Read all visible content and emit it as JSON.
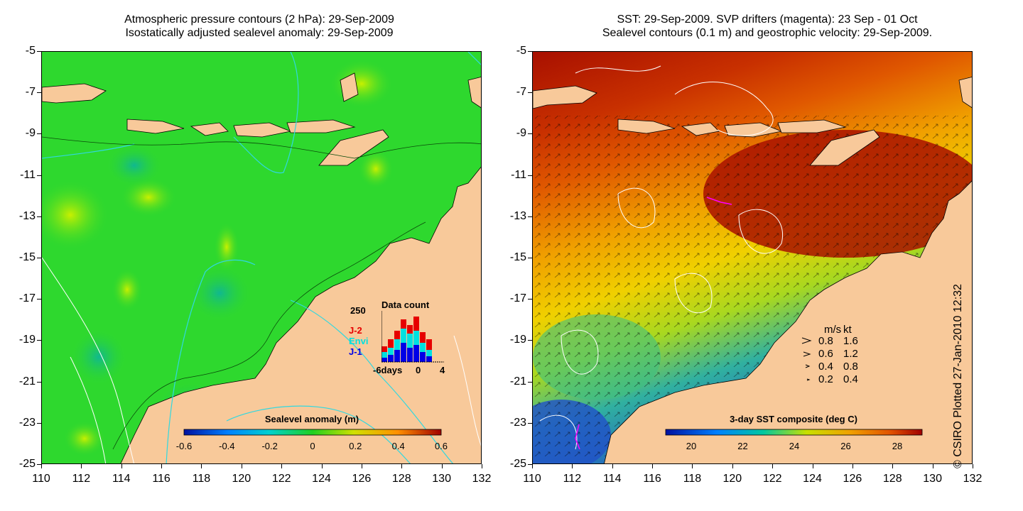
{
  "left_panel": {
    "title_line1": "Atmospheric pressure contours (2 hPa): 29-Sep-2009",
    "title_line2": "Isostatically adjusted sealevel anomaly: 29-Sep-2009",
    "colorbar": {
      "title": "Sealevel anomaly (m)",
      "labels": [
        "-0.6",
        "-0.4",
        "-0.2",
        "0",
        "0.2",
        "0.4",
        "0.6"
      ]
    },
    "data_count": {
      "title": "Data count",
      "ymax_label": "250",
      "series_labels": [
        "J-2",
        "Envi",
        "J-1"
      ],
      "series_colors": [
        "#e60000",
        "#00e0e0",
        "#0000e6"
      ],
      "x_labels": [
        "-6days",
        "0",
        "4"
      ]
    }
  },
  "right_panel": {
    "title_line1": "SST: 29-Sep-2009. SVP drifters (magenta): 23 Sep - 01 Oct",
    "title_line2": "Sealevel contours (0.1 m) and geostrophic velocity: 29-Sep-2009.",
    "colorbar": {
      "title": "3-day SST composite (deg C)",
      "labels": [
        "20",
        "22",
        "24",
        "26",
        "28"
      ]
    },
    "velocity_legend": {
      "header_ms": "m/s",
      "header_kt": "kt",
      "rows": [
        {
          "ms": "0.8",
          "kt": "1.6"
        },
        {
          "ms": "0.6",
          "kt": "1.2"
        },
        {
          "ms": "0.4",
          "kt": "0.8"
        },
        {
          "ms": "0.2",
          "kt": "0.4"
        }
      ]
    }
  },
  "axes": {
    "y_labels": [
      "-5",
      "-7",
      "-9",
      "-11",
      "-13",
      "-15",
      "-17",
      "-19",
      "-21",
      "-23",
      "-25"
    ],
    "x_labels": [
      "110",
      "112",
      "114",
      "116",
      "118",
      "120",
      "122",
      "124",
      "126",
      "128",
      "130",
      "132"
    ]
  },
  "credit": "© CSIRO Plotted 27-Jan-2010 12:32",
  "colors": {
    "land": "#f8c99a",
    "sla_ocean": "#2ed82e",
    "sst_hot": "#a81000",
    "sst_warm": "#e05800",
    "sst_mid": "#f0c800",
    "sst_cool": "#30b0a0",
    "sst_cold": "#2050c8"
  }
}
